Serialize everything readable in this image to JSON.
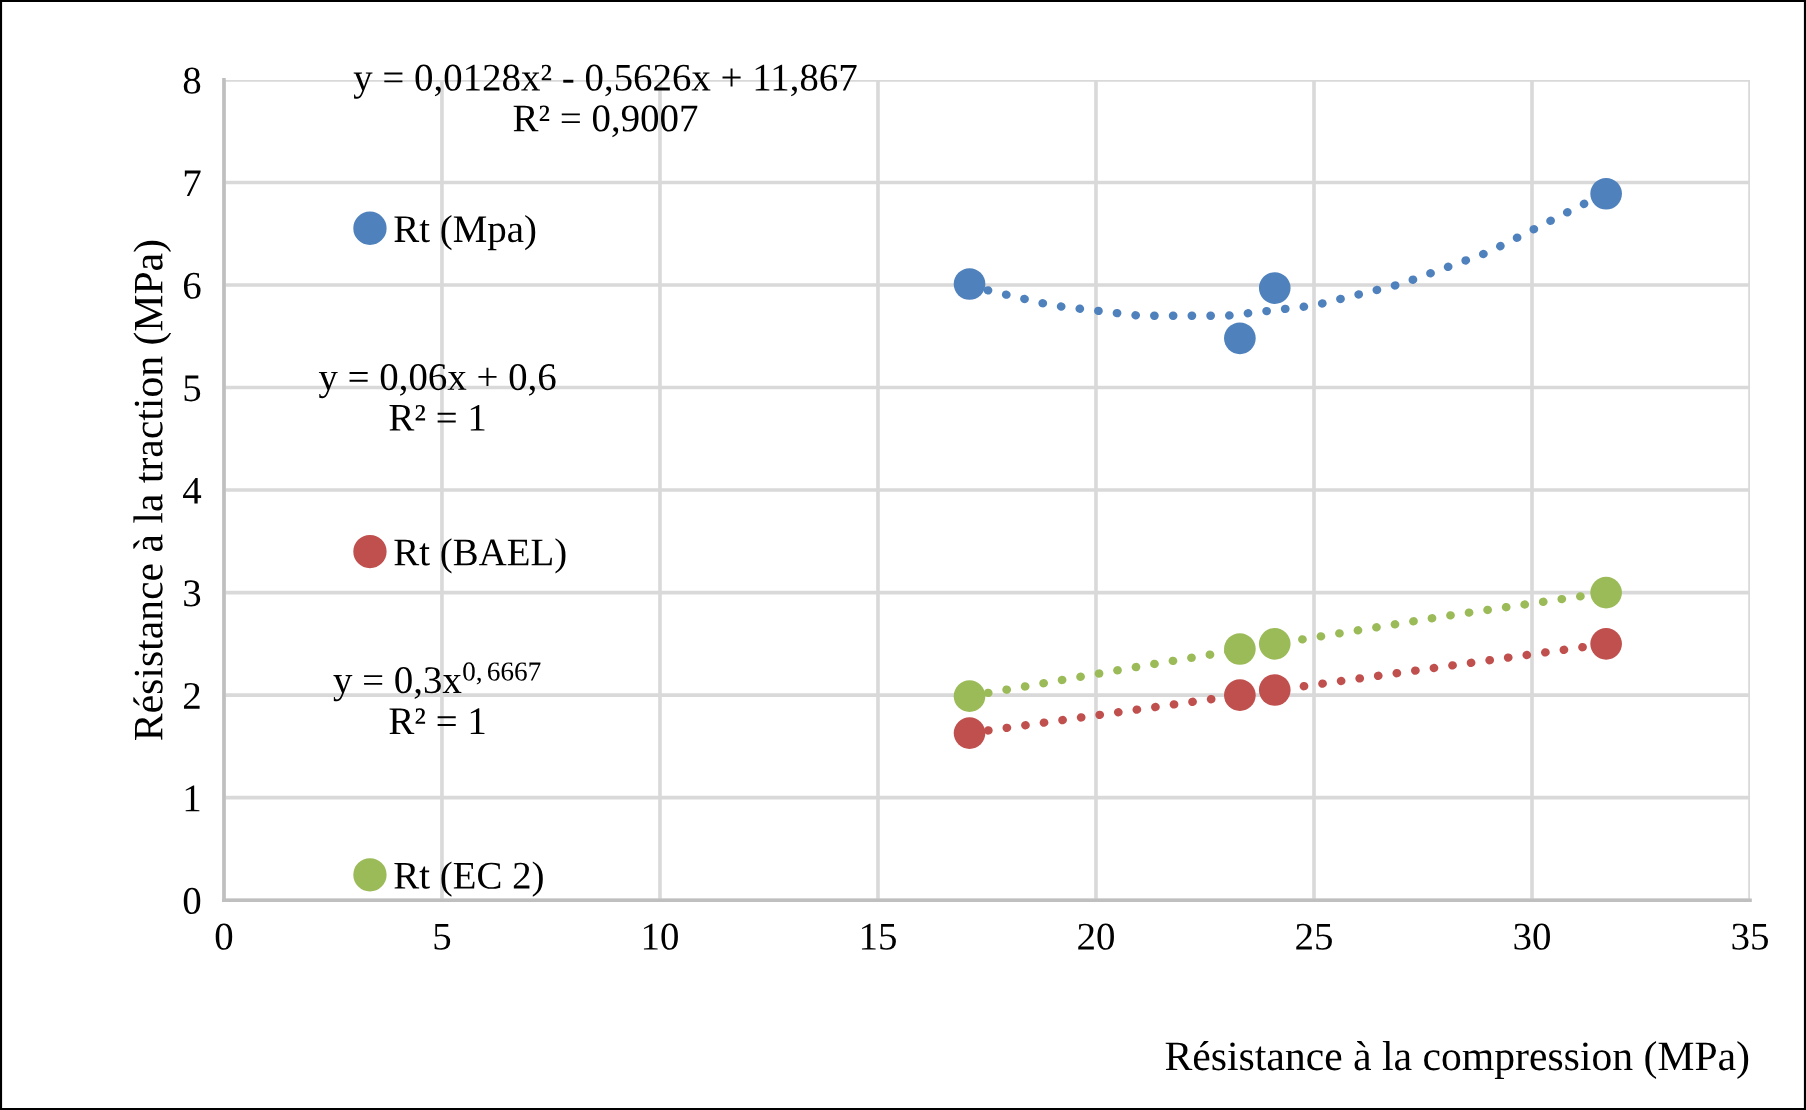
{
  "chart_data": {
    "type": "scatter",
    "xlabel": "Résistance à la compression (MPa)",
    "ylabel": "Résistance à la traction (MPa)",
    "xlim": [
      0,
      35
    ],
    "xticks": [
      0,
      5,
      10,
      15,
      20,
      25,
      30,
      35
    ],
    "ylim": [
      0,
      8
    ],
    "yticks": [
      0,
      1,
      2,
      3,
      4,
      5,
      6,
      7,
      8
    ],
    "grid": true,
    "legend": "left",
    "marker": "circle",
    "x": [
      17.1,
      23.3,
      24.1,
      31.7
    ],
    "series": [
      {
        "name": "Rt (Mpa)",
        "color": "#4f81bd",
        "values": [
          6.01,
          5.48,
          5.97,
          6.89
        ]
      },
      {
        "name": "Rt (BAEL)",
        "color": "#c0504d",
        "values": [
          1.63,
          2.0,
          2.05,
          2.5
        ]
      },
      {
        "name": "Rt (EC 2)",
        "color": "#9bbb59",
        "values": [
          1.99,
          2.45,
          2.5,
          3.0
        ]
      },
      {
        "type": "line",
        "marker": "none",
        "line_style": "dotted",
        "color": "#4f81bd",
        "x": [
          17.1,
          19,
          21,
          23,
          25,
          27,
          29,
          31.7
        ],
        "values": [
          5.99,
          5.8,
          5.7,
          5.7,
          5.8,
          6.01,
          6.32,
          6.9
        ]
      },
      {
        "type": "line",
        "marker": "none",
        "line_style": "dotted",
        "color": "#c0504d",
        "x": [
          17.1,
          31.7
        ],
        "values": [
          1.63,
          2.5
        ]
      },
      {
        "type": "line",
        "marker": "none",
        "line_style": "dotted",
        "color": "#9bbb59",
        "x": [
          17.1,
          21,
          24.1,
          28,
          31.7
        ],
        "values": [
          1.99,
          2.28,
          2.5,
          2.77,
          3.0
        ]
      }
    ],
    "annotations": [
      "y = 0,0128x² - 0,5626x + 11,867\nR² = 0,9007",
      "y = 0,06x + 0,6\nR² = 1",
      "y = 0,3x$^{0,6667}$\nR² = 1"
    ]
  }
}
